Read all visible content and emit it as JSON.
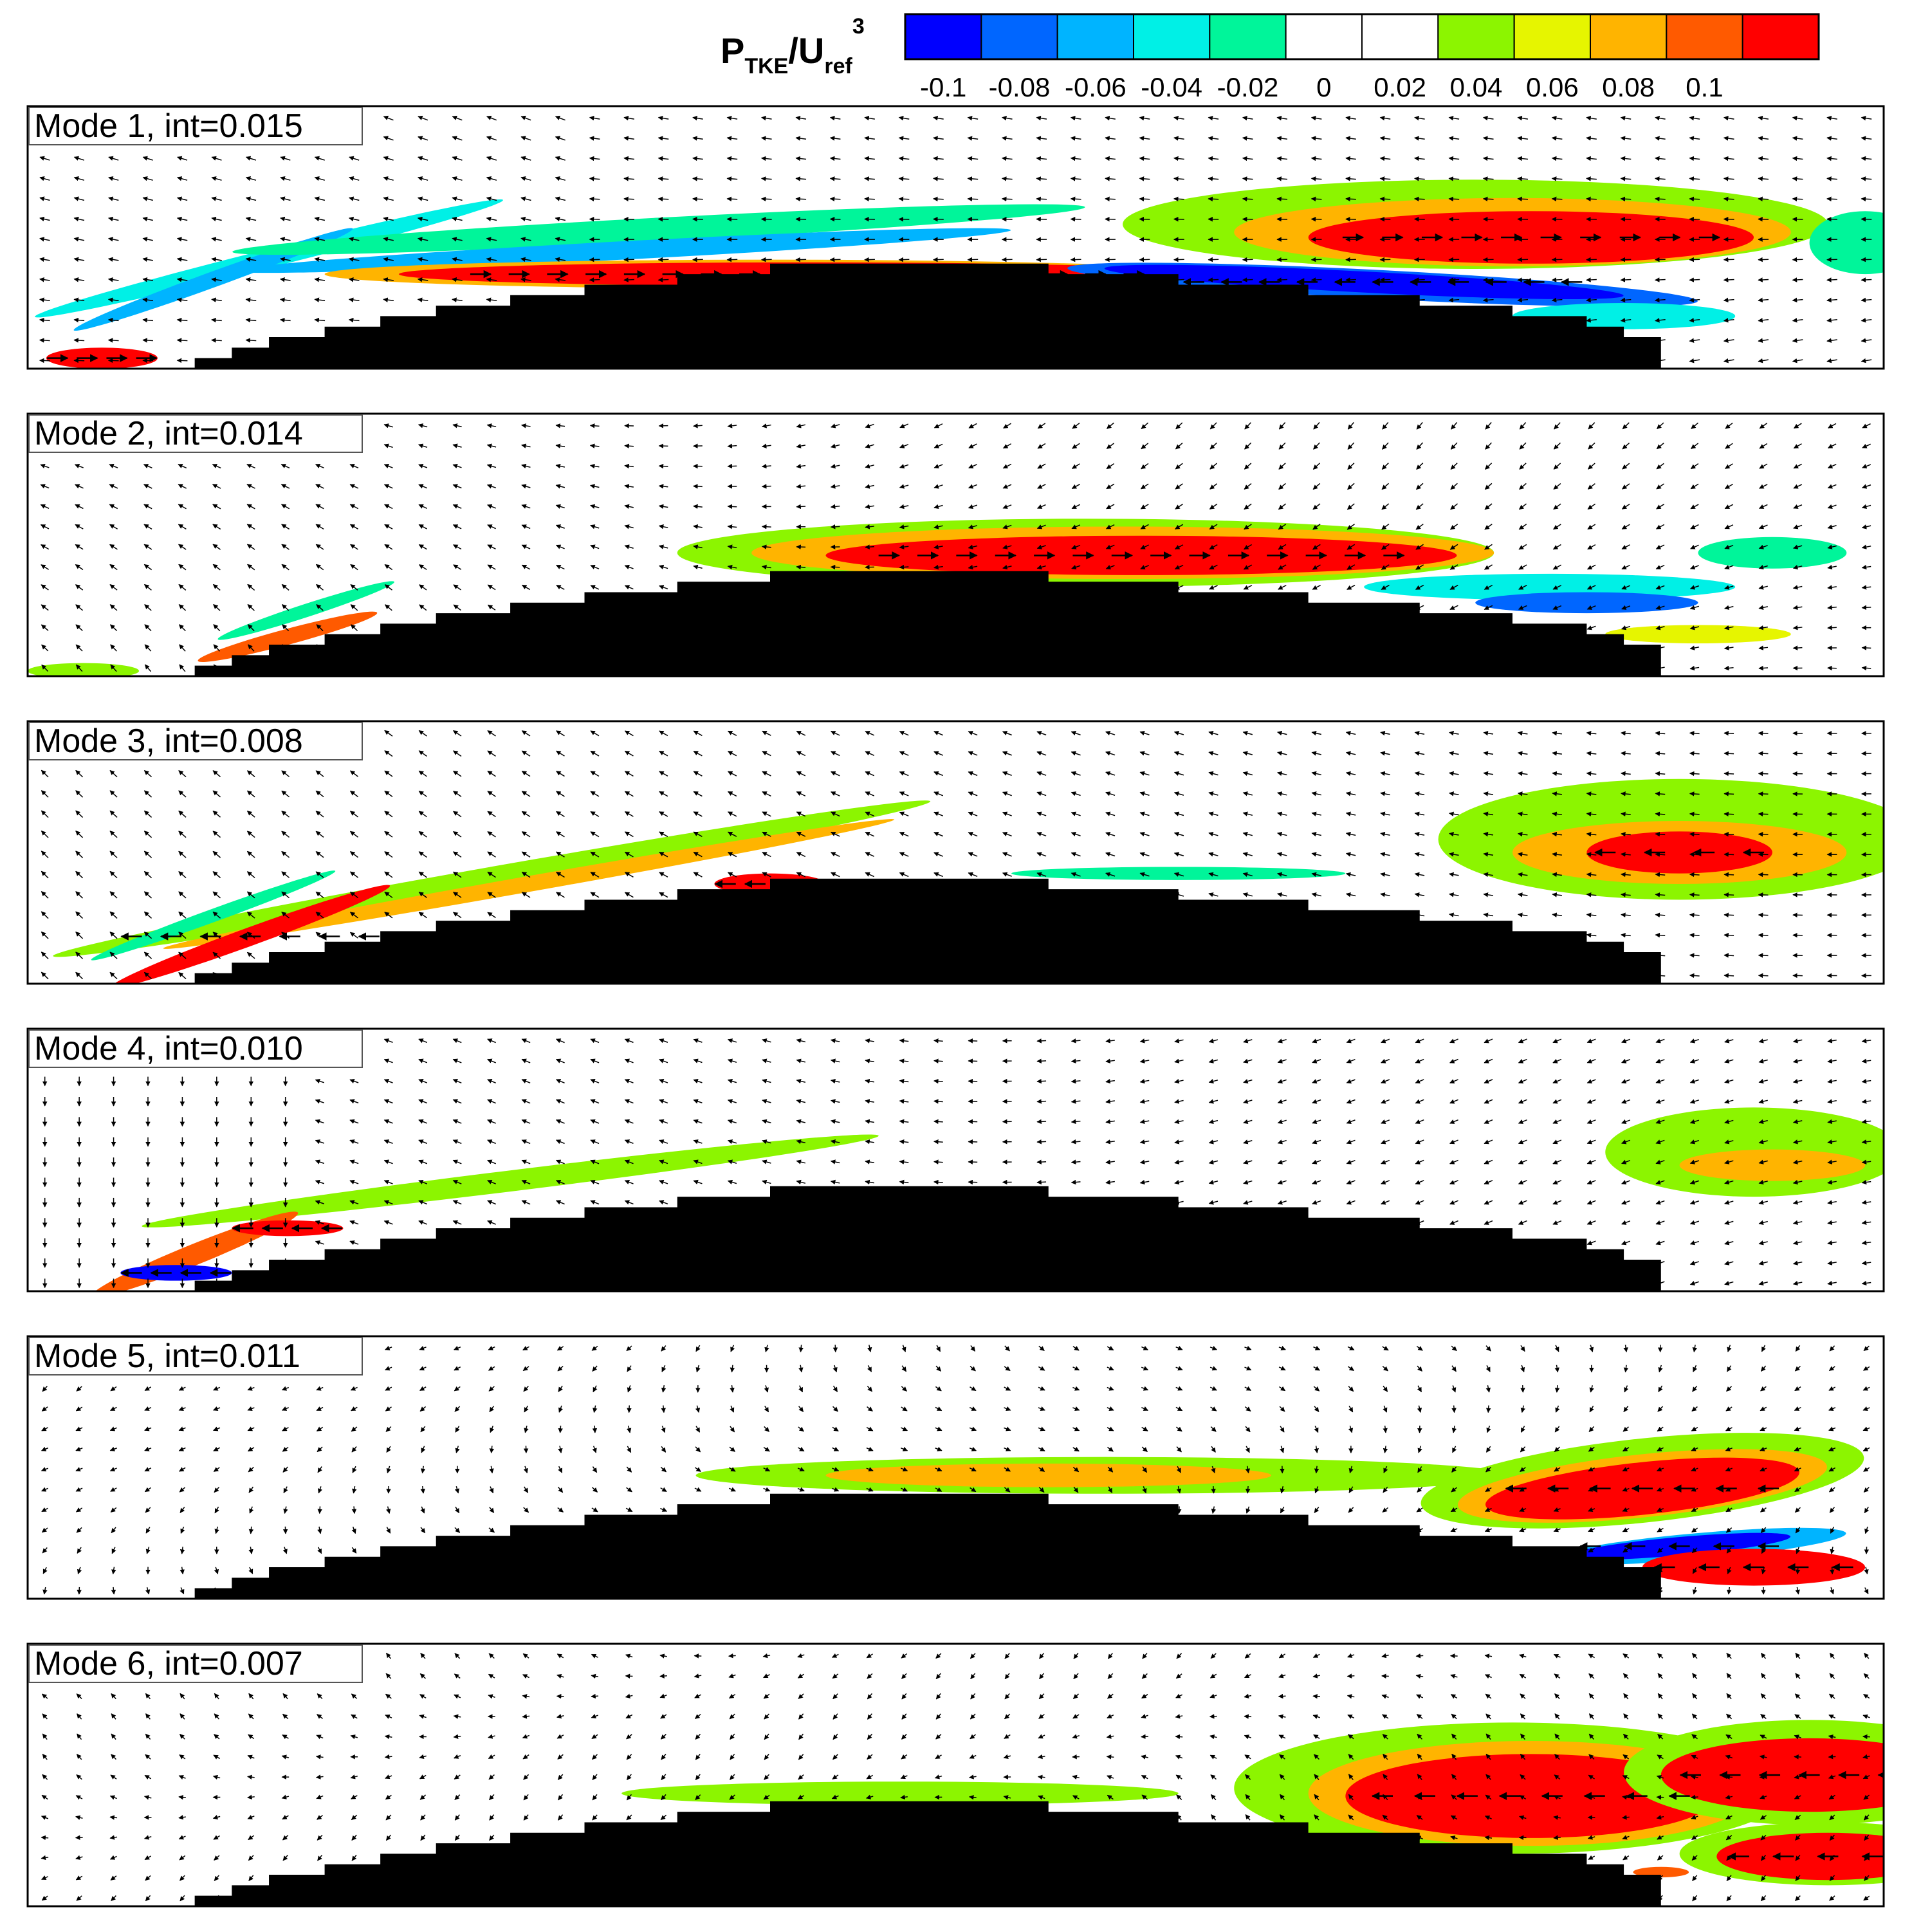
{
  "chart_data": {
    "type": "contour",
    "colorbar": {
      "label_main": "P",
      "label_sub": "TKE",
      "label_slash": "/U",
      "label_ref": "ref",
      "label_exp": "3",
      "ticks": [
        "-0.1",
        "-0.08",
        "-0.06",
        "-0.04",
        "-0.02",
        "0",
        "0.02",
        "0.04",
        "0.06",
        "0.08",
        "0.1"
      ],
      "levels": [
        -0.1,
        -0.08,
        -0.06,
        -0.04,
        -0.02,
        0,
        0.02,
        0.04,
        0.06,
        0.08,
        0.1
      ],
      "colors": [
        "#0000ff",
        "#0066ff",
        "#00b4ff",
        "#00f0e6",
        "#00f59a",
        "#ffffff",
        "#ffffff",
        "#8cf500",
        "#e6f500",
        "#ffb400",
        "#ff5a00",
        "#ff0000"
      ]
    },
    "panels": [
      {
        "label": "Mode 1, int=0.015",
        "blobs": [
          {
            "cx": 0.13,
            "cy": 0.58,
            "rx": 0.13,
            "ry": 0.035,
            "rot": -14,
            "c": "#00f0e6"
          },
          {
            "cx": 0.1,
            "cy": 0.66,
            "rx": 0.08,
            "ry": 0.03,
            "rot": -20,
            "c": "#00b4ff"
          },
          {
            "cx": 0.04,
            "cy": 0.96,
            "rx": 0.03,
            "ry": 0.04,
            "rot": 0,
            "c": "#ff0000"
          },
          {
            "cx": 0.34,
            "cy": 0.47,
            "rx": 0.23,
            "ry": 0.045,
            "rot": -3,
            "c": "#00f59a"
          },
          {
            "cx": 0.32,
            "cy": 0.55,
            "rx": 0.21,
            "ry": 0.035,
            "rot": -3,
            "c": "#00b4ff"
          },
          {
            "cx": 0.4,
            "cy": 0.64,
            "rx": 0.24,
            "ry": 0.055,
            "rot": 0,
            "c": "#ffb400"
          },
          {
            "cx": 0.42,
            "cy": 0.64,
            "rx": 0.22,
            "ry": 0.045,
            "rot": 0,
            "c": "#ff0000"
          },
          {
            "cx": 0.78,
            "cy": 0.45,
            "rx": 0.19,
            "ry": 0.17,
            "rot": 0,
            "c": "#8cf500"
          },
          {
            "cx": 0.8,
            "cy": 0.48,
            "rx": 0.15,
            "ry": 0.13,
            "rot": 0,
            "c": "#ffb400"
          },
          {
            "cx": 0.81,
            "cy": 0.5,
            "rx": 0.12,
            "ry": 0.1,
            "rot": 0,
            "c": "#ff0000"
          },
          {
            "cx": 0.73,
            "cy": 0.68,
            "rx": 0.17,
            "ry": 0.055,
            "rot": 3,
            "c": "#0066ff"
          },
          {
            "cx": 0.72,
            "cy": 0.67,
            "rx": 0.14,
            "ry": 0.04,
            "rot": 3,
            "c": "#0000ff"
          },
          {
            "cx": 0.86,
            "cy": 0.8,
            "rx": 0.06,
            "ry": 0.05,
            "rot": 0,
            "c": "#00f0e6"
          },
          {
            "cx": 0.99,
            "cy": 0.52,
            "rx": 0.03,
            "ry": 0.12,
            "rot": 0,
            "c": "#00f59a"
          }
        ]
      },
      {
        "label": "Mode 2, int=0.014",
        "blobs": [
          {
            "cx": 0.57,
            "cy": 0.53,
            "rx": 0.22,
            "ry": 0.13,
            "rot": 0,
            "c": "#8cf500"
          },
          {
            "cx": 0.59,
            "cy": 0.53,
            "rx": 0.2,
            "ry": 0.1,
            "rot": 0,
            "c": "#ffb400"
          },
          {
            "cx": 0.6,
            "cy": 0.54,
            "rx": 0.17,
            "ry": 0.075,
            "rot": 0,
            "c": "#ff0000"
          },
          {
            "cx": 0.82,
            "cy": 0.66,
            "rx": 0.1,
            "ry": 0.05,
            "rot": 0,
            "c": "#00f0e6"
          },
          {
            "cx": 0.84,
            "cy": 0.72,
            "rx": 0.06,
            "ry": 0.04,
            "rot": 0,
            "c": "#0066ff"
          },
          {
            "cx": 0.94,
            "cy": 0.53,
            "rx": 0.04,
            "ry": 0.06,
            "rot": 0,
            "c": "#00f59a"
          },
          {
            "cx": 0.15,
            "cy": 0.75,
            "rx": 0.05,
            "ry": 0.025,
            "rot": -18,
            "c": "#00f59a"
          },
          {
            "cx": 0.14,
            "cy": 0.85,
            "rx": 0.05,
            "ry": 0.03,
            "rot": -15,
            "c": "#ff5a00"
          },
          {
            "cx": 0.9,
            "cy": 0.84,
            "rx": 0.05,
            "ry": 0.035,
            "rot": 0,
            "c": "#e6f500"
          },
          {
            "cx": 0.03,
            "cy": 0.98,
            "rx": 0.03,
            "ry": 0.03,
            "rot": 0,
            "c": "#8cf500"
          }
        ]
      },
      {
        "label": "Mode 3, int=0.008",
        "blobs": [
          {
            "cx": 0.89,
            "cy": 0.45,
            "rx": 0.13,
            "ry": 0.23,
            "rot": 0,
            "c": "#8cf500"
          },
          {
            "cx": 0.89,
            "cy": 0.5,
            "rx": 0.09,
            "ry": 0.12,
            "rot": 0,
            "c": "#ffb400"
          },
          {
            "cx": 0.89,
            "cy": 0.5,
            "rx": 0.05,
            "ry": 0.08,
            "rot": 0,
            "c": "#ff0000"
          },
          {
            "cx": 0.25,
            "cy": 0.6,
            "rx": 0.24,
            "ry": 0.045,
            "rot": -10,
            "c": "#8cf500"
          },
          {
            "cx": 0.27,
            "cy": 0.62,
            "rx": 0.2,
            "ry": 0.03,
            "rot": -10,
            "c": "#ffb400"
          },
          {
            "cx": 0.12,
            "cy": 0.82,
            "rx": 0.08,
            "ry": 0.035,
            "rot": -20,
            "c": "#ff0000"
          },
          {
            "cx": 0.1,
            "cy": 0.74,
            "rx": 0.07,
            "ry": 0.025,
            "rot": -20,
            "c": "#00f59a"
          },
          {
            "cx": 0.4,
            "cy": 0.62,
            "rx": 0.03,
            "ry": 0.04,
            "rot": 0,
            "c": "#ff0000"
          },
          {
            "cx": 0.62,
            "cy": 0.58,
            "rx": 0.09,
            "ry": 0.025,
            "rot": 0,
            "c": "#00f59a"
          }
        ]
      },
      {
        "label": "Mode 4, int=0.010",
        "blobs": [
          {
            "cx": 0.93,
            "cy": 0.47,
            "rx": 0.08,
            "ry": 0.17,
            "rot": 0,
            "c": "#8cf500"
          },
          {
            "cx": 0.94,
            "cy": 0.52,
            "rx": 0.05,
            "ry": 0.06,
            "rot": 0,
            "c": "#ffb400"
          },
          {
            "cx": 0.26,
            "cy": 0.58,
            "rx": 0.2,
            "ry": 0.04,
            "rot": -7,
            "c": "#8cf500"
          },
          {
            "cx": 0.09,
            "cy": 0.86,
            "rx": 0.06,
            "ry": 0.04,
            "rot": -22,
            "c": "#ff5a00"
          },
          {
            "cx": 0.08,
            "cy": 0.93,
            "rx": 0.03,
            "ry": 0.03,
            "rot": 0,
            "c": "#0000ff"
          },
          {
            "cx": 0.14,
            "cy": 0.76,
            "rx": 0.03,
            "ry": 0.03,
            "rot": 0,
            "c": "#ff0000"
          }
        ]
      },
      {
        "label": "Mode 5, int=0.011",
        "blobs": [
          {
            "cx": 0.58,
            "cy": 0.53,
            "rx": 0.22,
            "ry": 0.07,
            "rot": 0,
            "c": "#8cf500"
          },
          {
            "cx": 0.55,
            "cy": 0.53,
            "rx": 0.12,
            "ry": 0.045,
            "rot": 0,
            "c": "#ffb400"
          },
          {
            "cx": 0.87,
            "cy": 0.55,
            "rx": 0.12,
            "ry": 0.16,
            "rot": -6,
            "c": "#8cf500"
          },
          {
            "cx": 0.87,
            "cy": 0.57,
            "rx": 0.1,
            "ry": 0.12,
            "rot": -6,
            "c": "#ffb400"
          },
          {
            "cx": 0.87,
            "cy": 0.58,
            "rx": 0.085,
            "ry": 0.1,
            "rot": -6,
            "c": "#ff0000"
          },
          {
            "cx": 0.9,
            "cy": 0.8,
            "rx": 0.08,
            "ry": 0.05,
            "rot": -5,
            "c": "#00b4ff"
          },
          {
            "cx": 0.89,
            "cy": 0.8,
            "rx": 0.06,
            "ry": 0.035,
            "rot": -5,
            "c": "#0000ff"
          },
          {
            "cx": 0.93,
            "cy": 0.88,
            "rx": 0.06,
            "ry": 0.07,
            "rot": 0,
            "c": "#ff0000"
          }
        ]
      },
      {
        "label": "Mode 6, int=0.007",
        "blobs": [
          {
            "cx": 0.8,
            "cy": 0.55,
            "rx": 0.15,
            "ry": 0.25,
            "rot": 0,
            "c": "#8cf500"
          },
          {
            "cx": 0.81,
            "cy": 0.57,
            "rx": 0.12,
            "ry": 0.2,
            "rot": 0,
            "c": "#ffb400"
          },
          {
            "cx": 0.81,
            "cy": 0.58,
            "rx": 0.1,
            "ry": 0.16,
            "rot": 0,
            "c": "#ff0000"
          },
          {
            "cx": 0.96,
            "cy": 0.49,
            "rx": 0.1,
            "ry": 0.2,
            "rot": 0,
            "c": "#8cf500"
          },
          {
            "cx": 0.96,
            "cy": 0.5,
            "rx": 0.08,
            "ry": 0.14,
            "rot": 0,
            "c": "#ff0000"
          },
          {
            "cx": 0.97,
            "cy": 0.8,
            "rx": 0.08,
            "ry": 0.12,
            "rot": 0,
            "c": "#8cf500"
          },
          {
            "cx": 0.97,
            "cy": 0.81,
            "rx": 0.06,
            "ry": 0.09,
            "rot": 0,
            "c": "#ff0000"
          },
          {
            "cx": 0.47,
            "cy": 0.57,
            "rx": 0.15,
            "ry": 0.045,
            "rot": 0,
            "c": "#8cf500"
          },
          {
            "cx": 0.88,
            "cy": 0.87,
            "rx": 0.015,
            "ry": 0.02,
            "rot": 0,
            "c": "#ff5a00"
          }
        ]
      }
    ]
  }
}
